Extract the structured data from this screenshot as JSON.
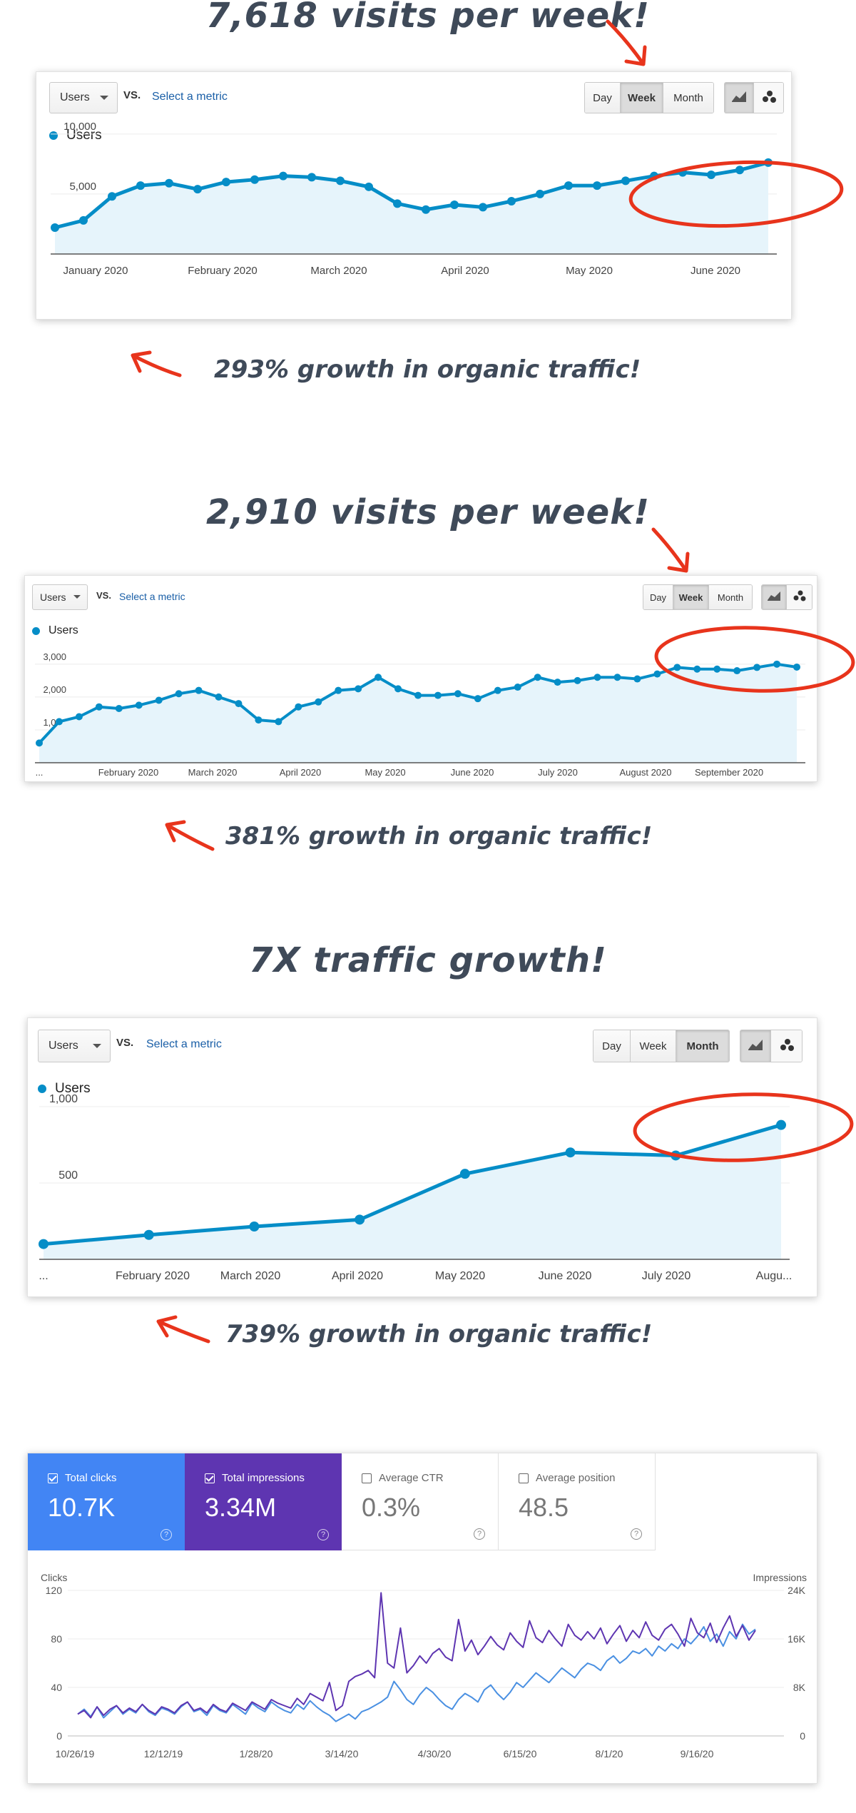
{
  "sections": [
    {
      "headline": "7,618 visits per week!",
      "growth": "293% growth in organic traffic!",
      "toolbar": {
        "metric_select": "Users",
        "vs": "VS.",
        "select_metric": "Select a metric",
        "period": [
          "Day",
          "Week",
          "Month"
        ],
        "active_period": "Week"
      },
      "legend": "Users"
    },
    {
      "headline": "2,910 visits per week!",
      "growth": "381% growth in organic traffic!",
      "toolbar": {
        "metric_select": "Users",
        "vs": "VS.",
        "select_metric": "Select a metric",
        "period": [
          "Day",
          "Week",
          "Month"
        ],
        "active_period": "Week"
      },
      "legend": "Users"
    },
    {
      "headline": "7X traffic growth!",
      "growth": "739% growth in organic traffic!",
      "toolbar": {
        "metric_select": "Users",
        "vs": "VS.",
        "select_metric": "Select a metric",
        "period": [
          "Day",
          "Week",
          "Month"
        ],
        "active_period": "Month"
      },
      "legend": "Users"
    }
  ],
  "search_console": {
    "tiles": [
      {
        "label": "Total clicks",
        "value": "10.7K",
        "checked": true,
        "color": "#4285f4"
      },
      {
        "label": "Total impressions",
        "value": "3.34M",
        "checked": true,
        "color": "#5e35b1"
      },
      {
        "label": "Average CTR",
        "value": "0.3%",
        "checked": false,
        "color": "#ffffff"
      },
      {
        "label": "Average position",
        "value": "48.5",
        "checked": false,
        "color": "#ffffff"
      }
    ],
    "left_axis_title": "Clicks",
    "right_axis_title": "Impressions"
  },
  "colors": {
    "ga_line": "#058dc7",
    "ga_fill": "#e6f4fb",
    "annotation": "#e8341c",
    "clicks": "#4a90e2",
    "impressions": "#5e35b1"
  },
  "chart_data": [
    {
      "type": "area",
      "series": [
        {
          "name": "Users",
          "values": [
            2200,
            2800,
            4800,
            5700,
            5900,
            5400,
            6000,
            6200,
            6500,
            6400,
            6100,
            5600,
            4200,
            3700,
            4100,
            3900,
            4400,
            5000,
            5700,
            5700,
            6100,
            6500,
            6800,
            6600,
            7000,
            7618
          ]
        }
      ],
      "x_tick_labels": [
        "January 2020",
        "February 2020",
        "March 2020",
        "April 2020",
        "May 2020",
        "June 2020"
      ],
      "y_tick_labels": [
        "10,000",
        "5,000"
      ],
      "ylim": [
        0,
        11000
      ]
    },
    {
      "type": "area",
      "series": [
        {
          "name": "Users",
          "values": [
            600,
            1250,
            1400,
            1700,
            1650,
            1750,
            1900,
            2100,
            2200,
            2000,
            1800,
            1300,
            1250,
            1700,
            1850,
            2200,
            2250,
            2600,
            2250,
            2050,
            2050,
            2100,
            1950,
            2200,
            2300,
            2600,
            2450,
            2500,
            2600,
            2600,
            2550,
            2700,
            2900,
            2850,
            2850,
            2800,
            2900,
            3000,
            2910
          ]
        }
      ],
      "x_tick_labels": [
        "...",
        "February 2020",
        "March 2020",
        "April 2020",
        "May 2020",
        "June 2020",
        "July 2020",
        "August 2020",
        "September 2020"
      ],
      "y_tick_labels": [
        "3,000",
        "2,000",
        "1,000"
      ],
      "ylim": [
        0,
        3300
      ]
    },
    {
      "type": "area",
      "series": [
        {
          "name": "Users",
          "values": [
            100,
            160,
            215,
            260,
            560,
            700,
            680,
            880
          ]
        }
      ],
      "x_tick_labels": [
        "...",
        "February 2020",
        "March 2020",
        "April 2020",
        "May 2020",
        "June 2020",
        "July 2020",
        "Augu..."
      ],
      "y_tick_labels": [
        "1,000",
        "500"
      ],
      "ylim": [
        0,
        1000
      ]
    },
    {
      "type": "line",
      "x_tick_labels": [
        "10/26/19",
        "12/12/19",
        "1/28/20",
        "3/14/20",
        "4/30/20",
        "6/15/20",
        "8/1/20",
        "9/16/20"
      ],
      "left_y_ticks": [
        "120",
        "80",
        "40",
        "0"
      ],
      "right_y_ticks": [
        "24K",
        "16K",
        "8K",
        "0"
      ],
      "ylim_left": [
        0,
        120
      ],
      "ylim_right": [
        0,
        24000
      ],
      "series": [
        {
          "name": "Total clicks",
          "axis": "left",
          "values": [
            18,
            22,
            16,
            24,
            15,
            20,
            25,
            18,
            22,
            19,
            26,
            20,
            17,
            23,
            21,
            18,
            24,
            28,
            20,
            22,
            17,
            25,
            21,
            19,
            26,
            22,
            18,
            27,
            23,
            20,
            28,
            24,
            21,
            19,
            26,
            22,
            29,
            24,
            20,
            17,
            12,
            15,
            18,
            14,
            20,
            22,
            25,
            28,
            32,
            45,
            38,
            30,
            26,
            34,
            40,
            36,
            30,
            25,
            22,
            30,
            35,
            32,
            28,
            38,
            42,
            35,
            30,
            36,
            44,
            40,
            46,
            52,
            48,
            44,
            50,
            56,
            52,
            48,
            55,
            60,
            58,
            54,
            62,
            66,
            60,
            64,
            70,
            68,
            72,
            66,
            74,
            70,
            76,
            72,
            80,
            76,
            82,
            90,
            78,
            84,
            74,
            86,
            80,
            92,
            84,
            88
          ]
        },
        {
          "name": "Total impressions",
          "axis": "right",
          "values": [
            3600,
            4200,
            3000,
            4800,
            3400,
            4400,
            5000,
            3800,
            4600,
            4000,
            5200,
            4200,
            3600,
            4800,
            4400,
            3800,
            5000,
            5600,
            4200,
            4600,
            3800,
            5200,
            4400,
            4000,
            5400,
            4800,
            4200,
            5600,
            5000,
            4400,
            6000,
            5400,
            5000,
            4600,
            6200,
            5200,
            7000,
            6400,
            5800,
            8800,
            4200,
            5000,
            9000,
            9800,
            10200,
            10800,
            9600,
            23600,
            12000,
            11200,
            17800,
            10400,
            11600,
            13200,
            12000,
            13600,
            14400,
            13000,
            12400,
            19200,
            14000,
            15800,
            13400,
            14800,
            16400,
            15000,
            14200,
            17000,
            15600,
            14600,
            19000,
            16200,
            15400,
            17400,
            16000,
            14800,
            18400,
            16600,
            15800,
            17200,
            16000,
            17800,
            15200,
            16800,
            18200,
            15600,
            17400,
            16200,
            18800,
            16600,
            15800,
            17600,
            18400,
            16800,
            14800,
            19400,
            17000,
            16200,
            18600,
            15400,
            17800,
            19800,
            16400,
            18200,
            15800,
            17400
          ]
        }
      ]
    }
  ]
}
